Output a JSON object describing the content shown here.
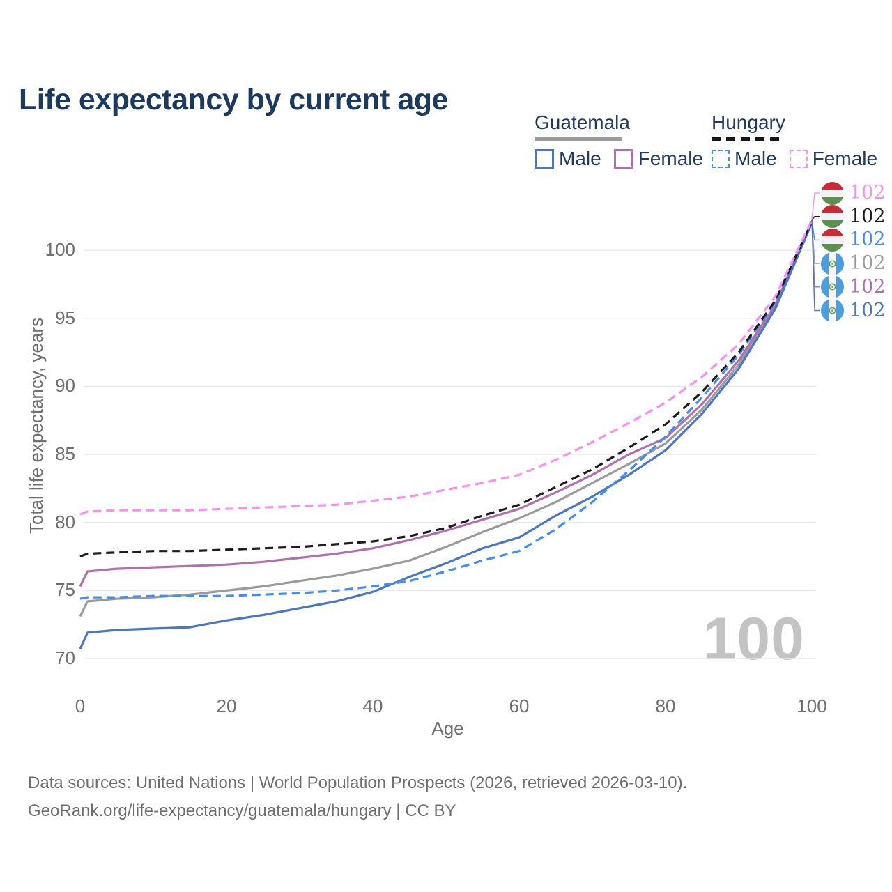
{
  "title": "Life expectancy by current age",
  "watermark_age": "100",
  "legend": {
    "guatemala": {
      "title": "Guatemala",
      "male": "Male",
      "female": "Female"
    },
    "hungary": {
      "title": "Hungary",
      "male": "Male",
      "female": "Female"
    }
  },
  "footer": {
    "line1": "Data sources: United Nations | World Population Prospects (2026, retrieved 2026-03-10).",
    "line2": "GeoRank.org/life-expectancy/guatemala/hungary | CC BY"
  },
  "colors": {
    "title_text": "#1c3a5e",
    "legend_text": "#223a5e",
    "tick_text": "#6f6f6f",
    "footer_text": "#6e6e6e",
    "gridline": "#e9e9e9",
    "watermark": "#c3c3c3",
    "guatemala_rule": "#9a9a9a",
    "hungary_rule": "#151515"
  },
  "chart_data": {
    "type": "line",
    "title": "Life expectancy by current age",
    "xlabel": "Age",
    "ylabel": "Total life expectancy, years",
    "xticks": [
      0,
      20,
      40,
      60,
      80,
      100
    ],
    "yticks": [
      70,
      75,
      80,
      85,
      90,
      95,
      100
    ],
    "xlim": [
      0,
      100
    ],
    "ylim": [
      68.5,
      103
    ],
    "grid": "horizontal",
    "legend_position": "top-right",
    "x": [
      0,
      1,
      5,
      10,
      15,
      20,
      25,
      30,
      35,
      40,
      45,
      50,
      55,
      60,
      65,
      70,
      75,
      80,
      85,
      90,
      95,
      100
    ],
    "series": [
      {
        "id": "guatemala-total",
        "country": "Guatemala",
        "sex": "Total",
        "color": "#9b9b9b",
        "dash": false,
        "values": [
          73.1,
          74.2,
          74.4,
          74.5,
          74.7,
          75.0,
          75.3,
          75.7,
          76.1,
          76.6,
          77.2,
          78.2,
          79.3,
          80.3,
          81.5,
          82.9,
          84.3,
          85.8,
          88.3,
          91.6,
          95.9,
          102.0
        ]
      },
      {
        "id": "guatemala-female",
        "country": "Guatemala",
        "sex": "Female",
        "color": "#b16fae",
        "dash": false,
        "values": [
          75.3,
          76.4,
          76.6,
          76.7,
          76.8,
          76.9,
          77.1,
          77.4,
          77.7,
          78.1,
          78.7,
          79.4,
          80.2,
          81.0,
          82.2,
          83.5,
          85.0,
          86.2,
          88.7,
          91.9,
          96.0,
          102.1
        ]
      },
      {
        "id": "guatemala-male",
        "country": "Guatemala",
        "sex": "Male",
        "color": "#4a77bf",
        "dash": false,
        "values": [
          70.7,
          71.9,
          72.1,
          72.2,
          72.3,
          72.8,
          73.2,
          73.7,
          74.2,
          74.9,
          76.0,
          77.0,
          78.1,
          78.9,
          80.5,
          81.9,
          83.5,
          85.3,
          88.0,
          91.3,
          95.7,
          102.0
        ]
      },
      {
        "id": "hungary-male",
        "country": "Hungary",
        "sex": "Male",
        "color": "#418df2",
        "dash": true,
        "values": [
          74.4,
          74.5,
          74.5,
          74.6,
          74.6,
          74.6,
          74.7,
          74.8,
          75.0,
          75.3,
          75.7,
          76.4,
          77.2,
          77.9,
          79.5,
          81.5,
          83.8,
          86.3,
          89.2,
          92.3,
          96.2,
          102.1
        ]
      },
      {
        "id": "hungary-total",
        "country": "Hungary",
        "sex": "Total",
        "color": "#1c1c1c",
        "dash": true,
        "values": [
          77.5,
          77.7,
          77.8,
          77.9,
          77.9,
          78.0,
          78.1,
          78.2,
          78.4,
          78.6,
          79.0,
          79.6,
          80.5,
          81.3,
          82.6,
          83.9,
          85.5,
          87.2,
          89.6,
          92.5,
          96.3,
          102.1
        ]
      },
      {
        "id": "hungary-female",
        "country": "Hungary",
        "sex": "Female",
        "color": "#fb8ef0",
        "dash": true,
        "values": [
          80.6,
          80.8,
          80.9,
          80.9,
          80.9,
          81.0,
          81.1,
          81.2,
          81.3,
          81.6,
          81.9,
          82.4,
          82.9,
          83.5,
          84.6,
          85.9,
          87.3,
          88.8,
          90.7,
          93.1,
          96.6,
          102.2
        ]
      }
    ],
    "end_labels": [
      {
        "series": "hungary-female",
        "flag": "hungary",
        "value": "102"
      },
      {
        "series": "hungary-total",
        "flag": "hungary",
        "value": "102"
      },
      {
        "series": "hungary-male",
        "flag": "hungary",
        "value": "102"
      },
      {
        "series": "guatemala-total",
        "flag": "guatemala",
        "value": "102"
      },
      {
        "series": "guatemala-female",
        "flag": "guatemala",
        "value": "102"
      },
      {
        "series": "guatemala-male",
        "flag": "guatemala",
        "value": "102"
      }
    ],
    "flag_colors": {
      "hungary": {
        "top": "#ce2939",
        "middle": "#f2f2f2",
        "bottom": "#5a9150"
      },
      "guatemala": {
        "side": "#4a9ede",
        "middle": "#f5f5f5",
        "emblem": "#5f9e55"
      }
    }
  }
}
